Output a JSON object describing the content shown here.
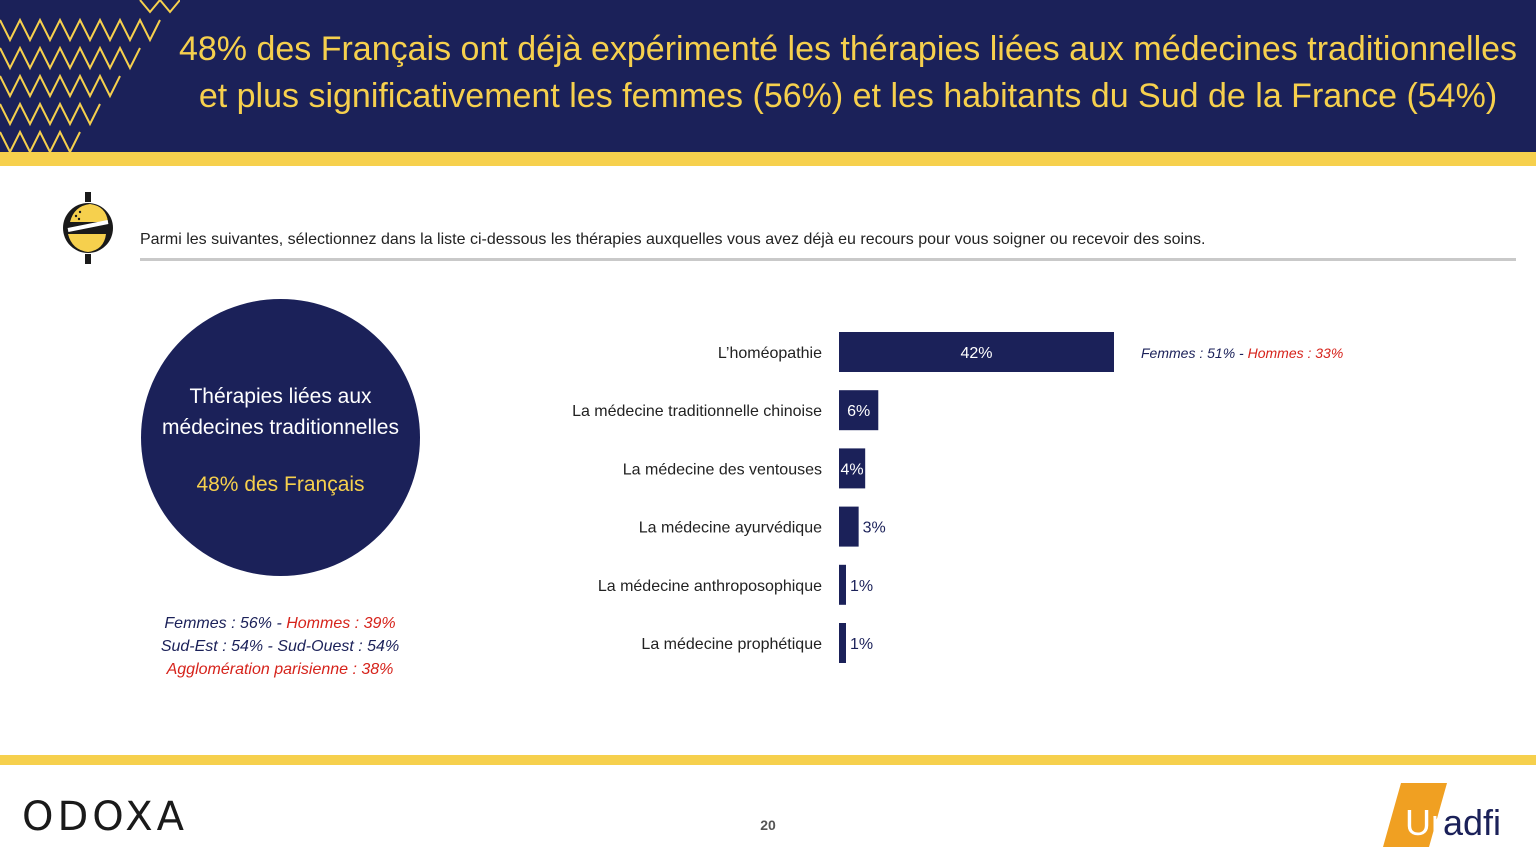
{
  "header": {
    "title_line1": "48% des Français ont déjà expérimenté les thérapies liées aux médecines traditionnelles",
    "title_line2": "et plus significativement les femmes (56%) et les habitants du Sud de la France (54%)"
  },
  "question": {
    "text": "Parmi les suivantes, sélectionnez dans la liste ci-dessous les thérapies auxquelles vous avez déjà eu recours pour vous soigner ou recevoir des soins."
  },
  "circle": {
    "line1": "Thérapies liées aux",
    "line2": "médecines traditionnelles",
    "value": "48% des Français"
  },
  "subgroups": {
    "femmes": "Femmes : 56%",
    "sep1": " - ",
    "hommes": "Hommes : 39%",
    "sud_est": "Sud-Est : 54%",
    "sep2": " - ",
    "sud_ouest": "Sud-Ouest : 54%",
    "paris": "Agglomération parisienne : 38%"
  },
  "side_note": {
    "femmes": "Femmes : 51%",
    "sep": " - ",
    "hommes": "Hommes : 33%"
  },
  "chart_data": {
    "type": "bar",
    "orientation": "horizontal",
    "categories": [
      "L’homéopathie",
      "La médecine traditionnelle chinoise",
      "La médecine des ventouses",
      "La médecine ayurvédique",
      "La médecine anthroposophique",
      "La médecine prophétique"
    ],
    "values": [
      42,
      6,
      4,
      3,
      1,
      1
    ],
    "value_labels": [
      "42%",
      "6%",
      "4%",
      "3%",
      "1%",
      "1%"
    ],
    "xlim": [
      0,
      42
    ],
    "bar_color": "#1b2159",
    "grid": false
  },
  "footer": {
    "logo_left": "ODOXA",
    "page_number": "20",
    "logo_right_un": "Un",
    "logo_right_adfi": "adfi"
  },
  "colors": {
    "navy": "#1b2159",
    "yellow": "#f6d04d",
    "red": "#d6231b"
  }
}
